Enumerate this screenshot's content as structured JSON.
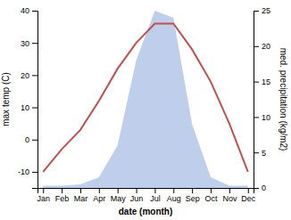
{
  "chart_data": {
    "type": "line",
    "xlabel": "date (month)",
    "ylabel": "max temp (C)",
    "y2label": "med. precipitation (kg/m2)",
    "categories": [
      "Jan",
      "Feb",
      "Mar",
      "Apr",
      "May",
      "Jun",
      "Jul",
      "Aug",
      "Sep",
      "Oct",
      "Nov",
      "Dec"
    ],
    "series": [
      {
        "type": "area",
        "axis": "y2",
        "color": "#b8c9e8",
        "values": [
          0.3,
          0.3,
          0.5,
          1.5,
          6,
          18,
          25,
          24,
          9,
          1.5,
          0.3,
          0.3
        ]
      },
      {
        "type": "line",
        "color": "#c0504d",
        "values": [
          -10,
          -3,
          3,
          12,
          22,
          30,
          36,
          36,
          28,
          18,
          5,
          -10
        ]
      }
    ],
    "ylim": [
      -15,
      40
    ],
    "yticks": [
      -10,
      0,
      10,
      20,
      30,
      40
    ],
    "y2lim": [
      0,
      25
    ],
    "y2ticks": [
      0,
      5,
      10,
      15,
      20,
      25
    ],
    "grid": false
  }
}
